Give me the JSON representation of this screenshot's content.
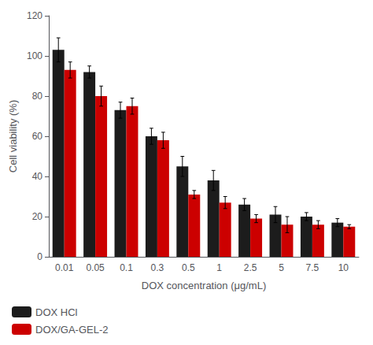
{
  "chart_data": {
    "type": "bar",
    "xlabel": "DOX concentration (μg/mL)",
    "ylabel": "Cell viability (%)",
    "categories": [
      "0.01",
      "0.05",
      "0.1",
      "0.3",
      "0.5",
      "1",
      "2.5",
      "5",
      "7.5",
      "10"
    ],
    "series": [
      {
        "name": "DOX HCl",
        "color": "#1c1c1c",
        "values": [
          103,
          92,
          73,
          60,
          45,
          38,
          26,
          21,
          20,
          17
        ],
        "errors": [
          6,
          3,
          4,
          4,
          5,
          5,
          3,
          4,
          2,
          2
        ]
      },
      {
        "name": "DOX/GA-GEL-2",
        "color": "#cc0000",
        "values": [
          93,
          80,
          75,
          58,
          31,
          27,
          19,
          16,
          16,
          15
        ],
        "errors": [
          4,
          5,
          4,
          4,
          2,
          3,
          2,
          4,
          2,
          1
        ]
      }
    ],
    "ylim": [
      0,
      120
    ],
    "yticks": [
      0,
      20,
      40,
      60,
      80,
      100,
      120
    ],
    "grid": false,
    "legend": "lower left"
  }
}
